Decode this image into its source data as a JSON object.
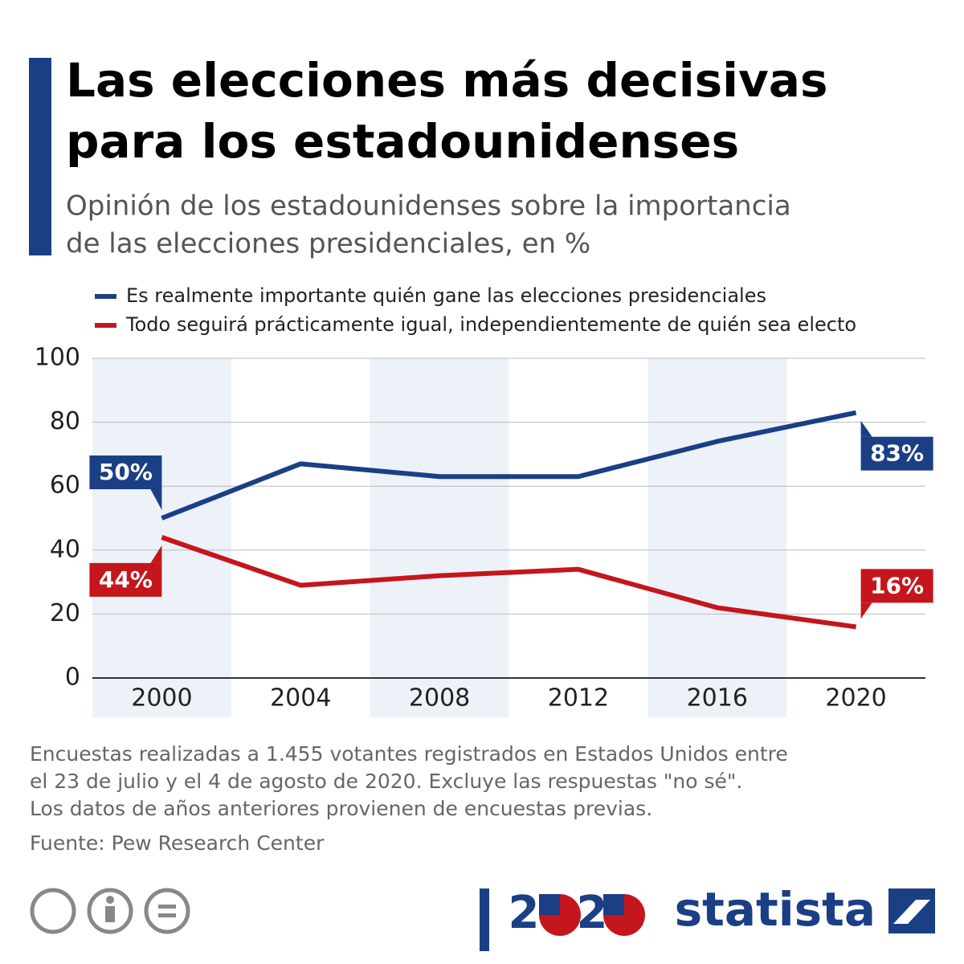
{
  "chart_data": {
    "type": "line",
    "title": [
      "Las elecciones más decisivas",
      "para los estadounidenses"
    ],
    "subtitle": [
      "Opinión de los estadounidenses sobre la importancia",
      "de las elecciones presidenciales, en %"
    ],
    "categories": [
      "2000",
      "2004",
      "2008",
      "2012",
      "2016",
      "2020"
    ],
    "series": [
      {
        "name": "Es realmente importante quién gane las elecciones presidenciales",
        "color": "#1a3f85",
        "values": [
          50,
          67,
          63,
          63,
          74,
          83
        ],
        "value_labels": [
          "50%",
          null,
          null,
          null,
          null,
          "83%"
        ]
      },
      {
        "name": "Todo seguirá prácticamente igual, independientemente de quién sea electo",
        "color": "#c4161c",
        "values": [
          44,
          29,
          32,
          34,
          22,
          16
        ],
        "value_labels": [
          "44%",
          null,
          null,
          null,
          null,
          "16%"
        ]
      }
    ],
    "ylim": [
      0,
      100
    ],
    "yticks": [
      0,
      20,
      40,
      60,
      80,
      100
    ],
    "grid": true,
    "notes": [
      "Encuestas realizadas a 1.455 votantes registrados en Estados Unidos entre",
      "el 23 de julio y el 4 de agosto de 2020. Excluye las respuestas \"no sé\".",
      "Los datos de años anteriores provienen de encuestas previas."
    ],
    "source": "Fuente: Pew Research Center",
    "badge_digits": [
      "2",
      "2"
    ],
    "brand": "statista"
  }
}
